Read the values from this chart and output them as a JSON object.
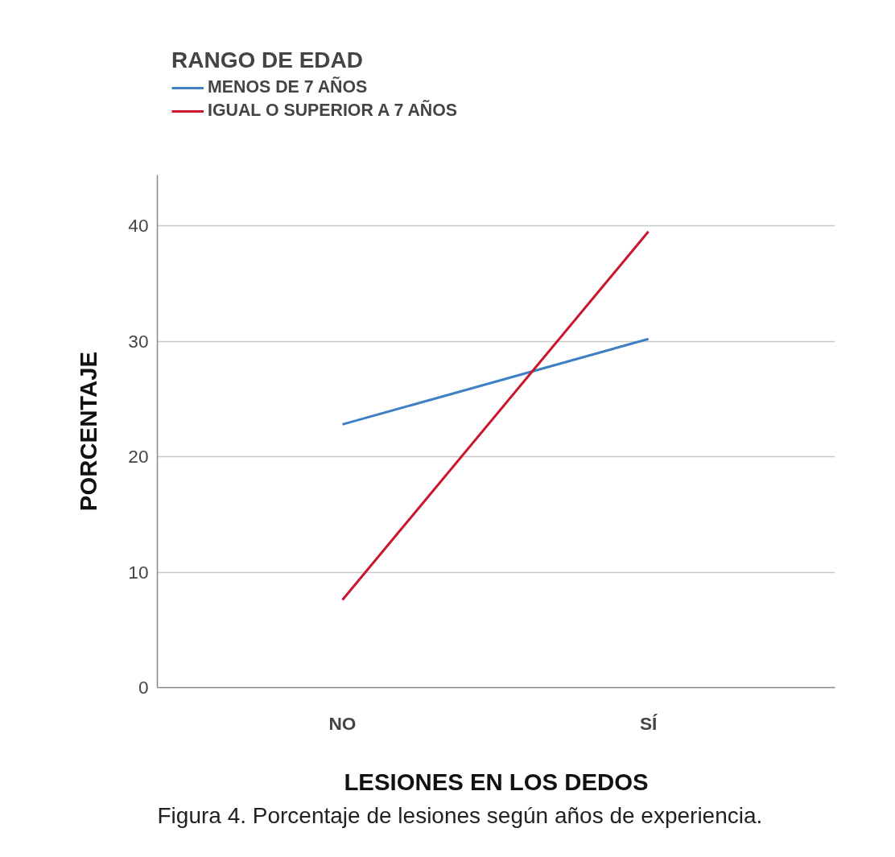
{
  "chart_data": {
    "type": "line",
    "categories": [
      "NO",
      "SÍ"
    ],
    "series": [
      {
        "name": "MENOS DE 7 AÑOS",
        "color": "#3f7fc4",
        "values": [
          22.8,
          30.2
        ]
      },
      {
        "name": "IGUAL O SUPERIOR A 7 AÑOS",
        "color": "#c8172e",
        "values": [
          7.6,
          39.5
        ]
      }
    ],
    "legend_title": "RANGO DE EDAD",
    "legend": "top left",
    "xlabel": "LESIONES EN LOS DEDOS",
    "ylabel": "PORCENTAJE",
    "ylim": [
      0,
      44.4
    ],
    "yticks": [
      0,
      10,
      20,
      30,
      40
    ],
    "grid": "y",
    "annotations": [
      "Figura 4. Porcentaje de lesiones según años de experiencia."
    ]
  }
}
